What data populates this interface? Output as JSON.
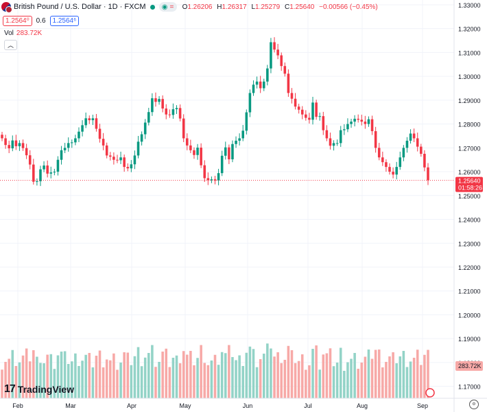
{
  "header": {
    "symbol_title": "British Pound / U.S. Dollar · 1D · FXCM",
    "ohlc": {
      "o_label": "O",
      "o": "1.26206",
      "h_label": "H",
      "h": "1.26317",
      "l_label": "L",
      "l": "1.25279",
      "c_label": "C",
      "c": "1.25640",
      "change": "−0.00566 (−0.45%)"
    },
    "sell_price": "1.2564⁰",
    "spread": "0.6",
    "buy_price": "1.2564⁶",
    "volume_label": "Vol",
    "volume_value": "283.72K",
    "collapse_icon": "chevron-up-icon"
  },
  "price_axis": {
    "ticks": [
      "1.33000",
      "1.32000",
      "1.31000",
      "1.30000",
      "1.29000",
      "1.28000",
      "1.27000",
      "1.26000",
      "1.25000",
      "1.24000",
      "1.23000",
      "1.22000",
      "1.21000",
      "1.20000",
      "1.19000",
      "1.18000",
      "1.17000"
    ],
    "last_price": "1.25640",
    "countdown": "01:58:26",
    "volume_tag": "283.72K"
  },
  "time_axis": {
    "labels": [
      "Feb",
      "Mar",
      "Apr",
      "May",
      "Jun",
      "Jul",
      "Aug",
      "Sep"
    ]
  },
  "brand": {
    "name": "TradingView",
    "logo": "tv-logo-icon"
  },
  "colors": {
    "up": "#089981",
    "down": "#f23645",
    "vol_up": "#93d3c7",
    "vol_down": "#f7a9a7",
    "last_line": "#f23645"
  },
  "chart_data": {
    "type": "candlestick",
    "title": "British Pound / U.S. Dollar · 1D · FXCM",
    "ylim": [
      1.165,
      1.332
    ],
    "x_range": [
      "2024-01-15",
      "2024-09-05"
    ],
    "last_price": 1.2564,
    "candles_close": [
      1.274,
      1.2712,
      1.2698,
      1.2731,
      1.2707,
      1.272,
      1.2699,
      1.2669,
      1.263,
      1.2558,
      1.256,
      1.261,
      1.2626,
      1.2592,
      1.2597,
      1.26,
      1.265,
      1.269,
      1.27,
      1.272,
      1.2723,
      1.274,
      1.2768,
      1.2795,
      1.2824,
      1.2816,
      1.2824,
      1.278,
      1.2738,
      1.271,
      1.2668,
      1.2663,
      1.265,
      1.2648,
      1.266,
      1.262,
      1.2614,
      1.2631,
      1.2668,
      1.2726,
      1.2757,
      1.2806,
      1.285,
      1.2908,
      1.2893,
      1.2905,
      1.2865,
      1.284,
      1.2838,
      1.2862,
      1.2867,
      1.2823,
      1.274,
      1.271,
      1.269,
      1.267,
      1.2701,
      1.2627,
      1.2573,
      1.2564,
      1.2568,
      1.2563,
      1.2594,
      1.2667,
      1.2702,
      1.2652,
      1.2716,
      1.273,
      1.274,
      1.2772,
      1.2849,
      1.293,
      1.2965,
      1.2978,
      1.295,
      1.2978,
      1.3033,
      1.3143,
      1.3112,
      1.3088,
      1.3043,
      1.3011,
      1.293,
      1.2906,
      1.2873,
      1.286,
      1.284,
      1.2826,
      1.2818,
      1.289,
      1.283,
      1.2833,
      1.2774,
      1.274,
      1.2709,
      1.272,
      1.272,
      1.2774,
      1.2778,
      1.28,
      1.281,
      1.2822,
      1.2818,
      1.281,
      1.28,
      1.282,
      1.277,
      1.27,
      1.266,
      1.264,
      1.262,
      1.26,
      1.2588,
      1.262,
      1.266,
      1.27,
      1.273,
      1.276,
      1.274,
      1.2705,
      1.2675,
      1.2618,
      1.2564
    ]
  }
}
